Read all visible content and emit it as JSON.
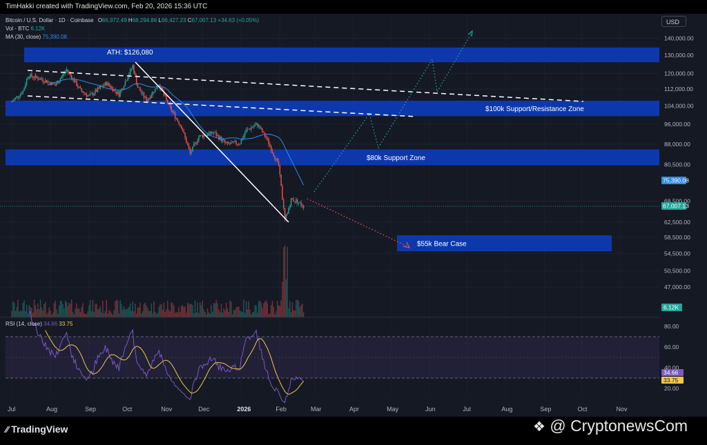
{
  "credit": "TimHakki created with TradingView.com, Feb 20, 2026 15:36 UTC",
  "currency": "USD",
  "legend": {
    "symbol": "Bitcoin / U.S. Dollar · 1D · Coinbase",
    "o_label": "O",
    "o": "66,972.49",
    "h_label": "H",
    "h": "68,294.86",
    "l_label": "L",
    "l": "66,427.23",
    "c_label": "C",
    "c": "67,007.13",
    "change": "+34.63 (+0.05%)",
    "vol_label": "Vol · BTC",
    "vol": "6.12K",
    "ma_label": "MA (30, close)",
    "ma": "75,390.08",
    "rsi_label": "RSI (14, close)",
    "rsi": "34.66",
    "rsi_ma": "33.75"
  },
  "footer": {
    "tradingview": "TradingView",
    "cryptonews": "@ CryptonewsCom"
  },
  "colors": {
    "bull": "#26a69a",
    "bear": "#ef5350",
    "zone": "#0d3bb8",
    "ma": "#2f8ce6",
    "rsi": "#7e57c2",
    "rsi_ma": "#f2c94c",
    "projection_up": "#26a69a",
    "projection_down": "#ef5350"
  },
  "chart_data": {
    "type": "candlestick",
    "x_ticks": [
      "Jul",
      "Aug",
      "Sep",
      "Oct",
      "Nov",
      "Dec",
      "2026",
      "Feb",
      "Mar",
      "Apr",
      "May",
      "Jun",
      "Jul",
      "Aug",
      "Sep",
      "Oct",
      "Nov"
    ],
    "y_ticks": [
      "140,000.00",
      "130,000.00",
      "120,000.00",
      "112,000.00",
      "104,000.00",
      "96,000.00",
      "88,000.00",
      "80,500.00",
      "68,500.00",
      "62,500.00",
      "58,500.00",
      "54,500.00",
      "50,500.00",
      "47,000.00"
    ],
    "y_scale": "log",
    "price_label": "67,007.13",
    "ma_value_label": "75,390.08",
    "volume_label": "6.12K",
    "close_series": [
      {
        "x": "2025-07-01",
        "y": 106000
      },
      {
        "x": "2025-07-10",
        "y": 111000
      },
      {
        "x": "2025-07-14",
        "y": 119000
      },
      {
        "x": "2025-07-25",
        "y": 117000
      },
      {
        "x": "2025-08-05",
        "y": 114000
      },
      {
        "x": "2025-08-14",
        "y": 122000
      },
      {
        "x": "2025-08-25",
        "y": 111500
      },
      {
        "x": "2025-09-01",
        "y": 108500
      },
      {
        "x": "2025-09-15",
        "y": 115000
      },
      {
        "x": "2025-09-25",
        "y": 109500
      },
      {
        "x": "2025-10-06",
        "y": 124000
      },
      {
        "x": "2025-10-10",
        "y": 113000
      },
      {
        "x": "2025-10-17",
        "y": 106500
      },
      {
        "x": "2025-10-27",
        "y": 114500
      },
      {
        "x": "2025-11-04",
        "y": 104000
      },
      {
        "x": "2025-11-14",
        "y": 95000
      },
      {
        "x": "2025-11-21",
        "y": 84500
      },
      {
        "x": "2025-11-28",
        "y": 91000
      },
      {
        "x": "2025-12-10",
        "y": 92500
      },
      {
        "x": "2025-12-20",
        "y": 88000
      },
      {
        "x": "2025-12-31",
        "y": 88500
      },
      {
        "x": "2026-01-05",
        "y": 93500
      },
      {
        "x": "2026-01-14",
        "y": 96000
      },
      {
        "x": "2026-01-22",
        "y": 89500
      },
      {
        "x": "2026-01-31",
        "y": 80000
      },
      {
        "x": "2026-02-05",
        "y": 63000
      },
      {
        "x": "2026-02-10",
        "y": 69000
      },
      {
        "x": "2026-02-15",
        "y": 68500
      },
      {
        "x": "2026-02-20",
        "y": 67000
      }
    ],
    "zones": [
      {
        "label": "",
        "low": 126000,
        "high": 134500
      },
      {
        "label": "$100k Support/Resistance Zone",
        "low": 99500,
        "high": 106500
      },
      {
        "label": "$80k Support Zone",
        "low": 80200,
        "high": 86000
      },
      {
        "label": "$55k Bear Case",
        "low": 55000,
        "high": 59000
      }
    ],
    "annotations": [
      {
        "text": "ATH: $126,080",
        "x": "2025-10-06",
        "y": 126080
      }
    ],
    "rsi": {
      "y_ticks": [
        "80.00",
        "60.00",
        "40.00",
        "20.00"
      ],
      "levels": [
        70,
        30
      ],
      "last_labels": [
        "34.66",
        "33.75"
      ]
    }
  }
}
